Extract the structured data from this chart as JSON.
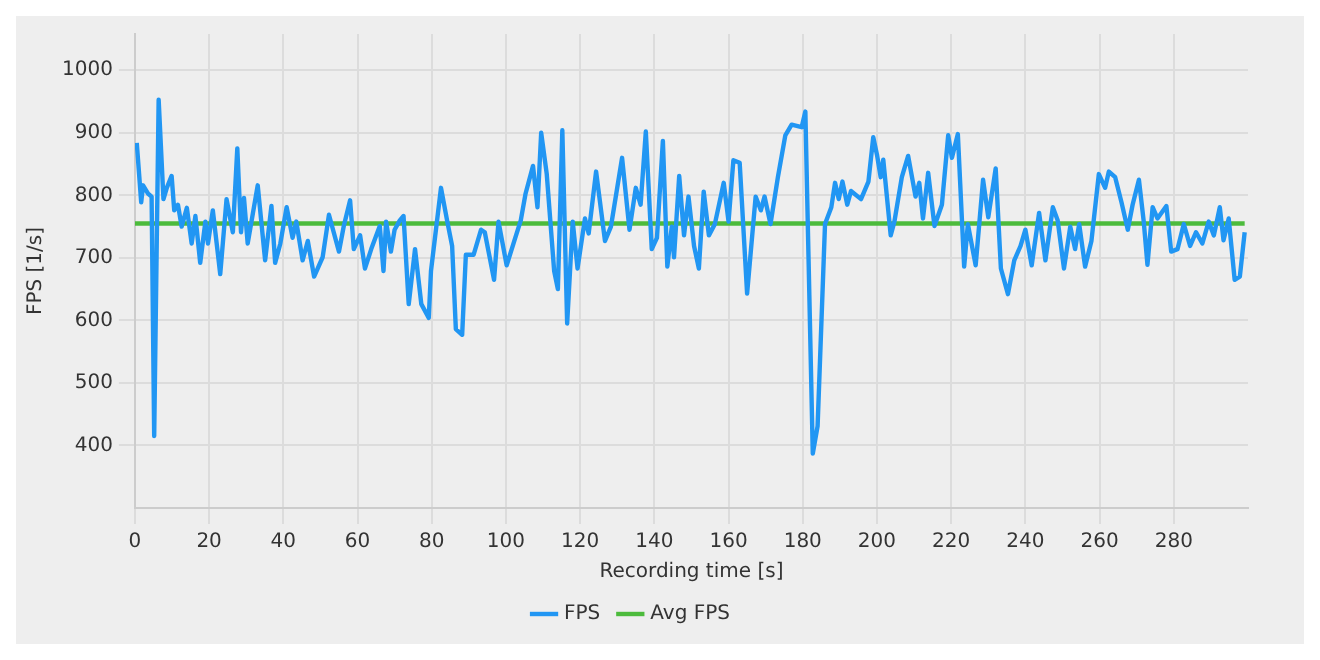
{
  "chart_data": {
    "type": "line",
    "xlabel": "Recording time [s]",
    "ylabel": "FPS [1/s]",
    "xlim": [
      0,
      300
    ],
    "xticks": [
      0,
      20,
      40,
      60,
      80,
      100,
      120,
      140,
      160,
      180,
      200,
      220,
      240,
      260,
      280
    ],
    "ylim": [
      300,
      1058
    ],
    "yticks": [
      400,
      500,
      600,
      700,
      800,
      900,
      1000
    ],
    "grid": true,
    "legend": "bottom",
    "marker": "none",
    "line_style": "solid",
    "series": [
      {
        "name": "FPS",
        "color": "#2196f3",
        "x": [
          0.5,
          1.7,
          2.2,
          3.5,
          4.5,
          5.2,
          6.4,
          7.7,
          8.6,
          9.9,
          10.6,
          11.6,
          12.6,
          14,
          15.3,
          16.3,
          17.6,
          19,
          19.7,
          21,
          23,
          24.7,
          26.4,
          27.6,
          28.6,
          29.4,
          30.4,
          33.1,
          35.1,
          36.8,
          37.8,
          39.2,
          40.9,
          42.5,
          43.5,
          45.2,
          46.6,
          48.3,
          50.6,
          52.3,
          55,
          56.3,
          58,
          59,
          60.7,
          62,
          63.7,
          66,
          67,
          67.7,
          69,
          70,
          71.4,
          72.4,
          73.8,
          75.5,
          77.2,
          79.2,
          79.8,
          82.5,
          84.2,
          85.5,
          86.5,
          88.2,
          89.2,
          91.3,
          93.3,
          94.3,
          96.8,
          98,
          100.2,
          102.3,
          104,
          105.3,
          107.3,
          108.5,
          109.5,
          111,
          113,
          114,
          115.2,
          116.5,
          118,
          119.3,
          121.3,
          122.3,
          124.3,
          126.7,
          128.3,
          131.3,
          133.3,
          135,
          136.3,
          137.7,
          139.3,
          140.7,
          142.3,
          143.5,
          144.7,
          145.3,
          146.7,
          148,
          149.2,
          150.7,
          152,
          153.3,
          154.7,
          156.3,
          158.7,
          160,
          161.3,
          163,
          165,
          167.3,
          168.7,
          169.7,
          171.3,
          173.3,
          175.3,
          177,
          179.7,
          180.7,
          182.7,
          184,
          186,
          187.7,
          188.7,
          189.7,
          190.7,
          192,
          193,
          195.7,
          197.7,
          199,
          200,
          201,
          201.7,
          203.7,
          204.7,
          206.7,
          208.4,
          210.4,
          211.4,
          212.4,
          213.8,
          215.5,
          217.5,
          219.2,
          220.2,
          221.8,
          223.5,
          224.5,
          226.6,
          228.6,
          230,
          232,
          233.4,
          235.3,
          237,
          238.7,
          240,
          241.7,
          243.7,
          245.4,
          247.4,
          248.7,
          250.4,
          252.1,
          253.4,
          254.5,
          256.1,
          257.8,
          259.8,
          261.5,
          262.5,
          264.2,
          265.9,
          267.6,
          268.9,
          270.6,
          271.9,
          272.9,
          274.3,
          275.6,
          278,
          279.3,
          281,
          282.7,
          284.4,
          286,
          287.7,
          289.4,
          290.8,
          292.4,
          293.4,
          294.8,
          296.4,
          297.8,
          299.1
        ],
        "values": [
          884,
          789,
          816,
          803,
          798,
          415,
          953,
          794,
          812,
          831,
          776,
          785,
          750,
          780,
          723,
          767,
          692,
          758,
          723,
          776,
          674,
          794,
          741,
          875,
          741,
          796,
          723,
          816,
          696,
          783,
          692,
          723,
          781,
          732,
          758,
          696,
          727,
          670,
          701,
          769,
          710,
          751,
          792,
          714,
          736,
          683,
          714,
          751,
          679,
          758,
          710,
          745,
          760,
          767,
          626,
          714,
          626,
          604,
          679,
          812,
          758,
          719,
          586,
          577,
          705,
          705,
          745,
          741,
          665,
          758,
          688,
          728,
          760,
          803,
          847,
          781,
          900,
          834,
          679,
          650,
          904,
          595,
          758,
          683,
          763,
          739,
          838,
          727,
          750,
          860,
          745,
          812,
          785,
          902,
          714,
          732,
          887,
          686,
          750,
          701,
          831,
          736,
          798,
          719,
          683,
          806,
          736,
          754,
          820,
          758,
          856,
          852,
          643,
          798,
          776,
          798,
          754,
          829,
          896,
          913,
          909,
          934,
          387,
          431,
          754,
          781,
          820,
          794,
          822,
          785,
          807,
          794,
          822,
          893,
          865,
          829,
          857,
          736,
          758,
          829,
          863,
          798,
          820,
          763,
          836,
          751,
          785,
          896,
          860,
          898,
          686,
          754,
          688,
          825,
          765,
          843,
          683,
          642,
          696,
          719,
          745,
          688,
          772,
          696,
          781,
          760,
          683,
          750,
          714,
          754,
          686,
          727,
          834,
          812,
          838,
          829,
          789,
          745,
          785,
          825,
          758,
          689,
          781,
          763,
          783,
          710,
          714,
          754,
          719,
          741,
          723,
          758,
          736,
          781,
          728,
          763,
          665,
          670,
          741
        ]
      },
      {
        "name": "Avg FPS",
        "color": "#4cbb3c",
        "x": [
          0,
          299.1
        ],
        "values": [
          755,
          755
        ]
      }
    ]
  }
}
